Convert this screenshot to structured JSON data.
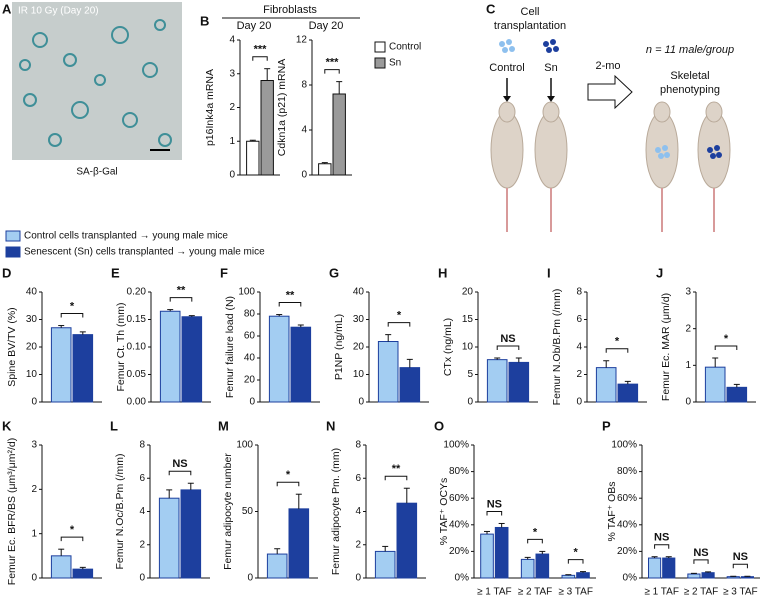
{
  "panel_a": {
    "panel": "A",
    "title": "IR 10 Gy (Day 20)",
    "caption": "SA-β-Gal"
  },
  "panel_c": {
    "panel": "C",
    "title_lines": [
      "Cell",
      "transplantation"
    ],
    "groups": [
      "Control",
      "Sn"
    ],
    "interval": "2-mo",
    "n_note": "n = 11 male/group",
    "outcome_lines": [
      "Skeletal",
      "phenotyping"
    ]
  },
  "legend": {
    "series": [
      {
        "name": "Control cells transplanted → young male mice",
        "color": "#a3cdf2"
      },
      {
        "name": "Senescent (Sn) cells transplanted → young male mice",
        "color": "#1d3f9e"
      }
    ]
  },
  "b_title": "Fibroblasts",
  "b_legend": {
    "series": [
      {
        "name": "Control",
        "color": "#ffffff"
      },
      {
        "name": "Sn",
        "color": "#9a9a9a"
      }
    ]
  },
  "chart_data": [
    {
      "type": "bar",
      "panel": "B",
      "subtitle": "Day 20",
      "ylabel": "p16Ink4a mRNA",
      "ylim": [
        0,
        4
      ],
      "yticks": [
        0,
        1,
        2,
        3,
        4
      ],
      "series": [
        {
          "values": [
            1
          ],
          "errors": [
            0.03
          ],
          "color": "#ffffff"
        },
        {
          "values": [
            2.8
          ],
          "errors": [
            0.35
          ],
          "color": "#9a9a9a"
        }
      ],
      "significance": [
        "***"
      ]
    },
    {
      "type": "bar",
      "subtitle": "Day 20",
      "ylabel": "Cdkn1a (p21) mRNA",
      "ylim": [
        0,
        12
      ],
      "yticks": [
        0,
        4,
        8,
        12
      ],
      "series": [
        {
          "values": [
            1
          ],
          "errors": [
            0.1
          ],
          "color": "#ffffff"
        },
        {
          "values": [
            7.2
          ],
          "errors": [
            1.1
          ],
          "color": "#9a9a9a"
        }
      ],
      "significance": [
        "***"
      ]
    },
    {
      "type": "bar",
      "panel": "D",
      "ylabel": "Spine BV/TV (%)",
      "ylim": [
        0,
        40
      ],
      "yticks": [
        0,
        10,
        20,
        30,
        40
      ],
      "series": [
        {
          "values": [
            27
          ],
          "errors": [
            0.8
          ]
        },
        {
          "values": [
            24.5
          ],
          "errors": [
            1
          ]
        }
      ],
      "significance": [
        "*"
      ]
    },
    {
      "type": "bar",
      "panel": "E",
      "ylabel": "Femur Ct. Th (mm)",
      "ylim": [
        0,
        0.2
      ],
      "yticks": [
        {
          "value": 0,
          "label": "0.00"
        },
        {
          "value": 0.05,
          "label": "0.05"
        },
        {
          "value": 0.1,
          "label": "0.10"
        },
        {
          "value": 0.15,
          "label": "0.15"
        },
        {
          "value": 0.2,
          "label": "0.20"
        }
      ],
      "series": [
        {
          "values": [
            0.165
          ],
          "errors": [
            0.003
          ]
        },
        {
          "values": [
            0.155
          ],
          "errors": [
            0.002
          ]
        }
      ],
      "significance": [
        "**"
      ]
    },
    {
      "type": "bar",
      "panel": "F",
      "ylabel": "Femur failure load (N)",
      "ylim": [
        0,
        100
      ],
      "yticks": [
        0,
        20,
        40,
        60,
        80,
        100
      ],
      "series": [
        {
          "values": [
            78
          ],
          "errors": [
            1.5
          ]
        },
        {
          "values": [
            68
          ],
          "errors": [
            2
          ]
        }
      ],
      "significance": [
        "**"
      ]
    },
    {
      "type": "bar",
      "panel": "G",
      "ylabel": "P1NP (ng/mL)",
      "ylim": [
        0,
        40
      ],
      "yticks": [
        0,
        10,
        20,
        30,
        40
      ],
      "series": [
        {
          "values": [
            22
          ],
          "errors": [
            2.5
          ]
        },
        {
          "values": [
            12.5
          ],
          "errors": [
            3
          ]
        }
      ],
      "significance": [
        "*"
      ]
    },
    {
      "type": "bar",
      "panel": "H",
      "ylabel": "CTx (ng/mL)",
      "ylim": [
        0,
        20
      ],
      "yticks": [
        0,
        5,
        10,
        15,
        20
      ],
      "series": [
        {
          "values": [
            7.7
          ],
          "errors": [
            0.3
          ]
        },
        {
          "values": [
            7.2
          ],
          "errors": [
            0.8
          ]
        }
      ],
      "significance": [
        "NS"
      ]
    },
    {
      "type": "bar",
      "panel": "I",
      "ylabel": "Femur N.Ob/B.Pm (/mm)",
      "ylim": [
        0,
        8
      ],
      "yticks": [
        0,
        2,
        4,
        6,
        8
      ],
      "series": [
        {
          "values": [
            2.5
          ],
          "errors": [
            0.5
          ]
        },
        {
          "values": [
            1.3
          ],
          "errors": [
            0.2
          ]
        }
      ],
      "significance": [
        "*"
      ]
    },
    {
      "type": "bar",
      "panel": "J",
      "ylabel": "Femur Ec. MAR (μm/d)",
      "ylim": [
        0,
        3
      ],
      "yticks": [
        0,
        1,
        2,
        3
      ],
      "series": [
        {
          "values": [
            0.95
          ],
          "errors": [
            0.25
          ]
        },
        {
          "values": [
            0.4
          ],
          "errors": [
            0.08
          ]
        }
      ],
      "significance": [
        "*"
      ]
    },
    {
      "type": "bar",
      "panel": "K",
      "ylabel": "Femur Ec. BFR/BS (μm³/μm²/d)",
      "ylim": [
        0,
        3
      ],
      "yticks": [
        0,
        1,
        2,
        3
      ],
      "series": [
        {
          "values": [
            0.5
          ],
          "errors": [
            0.15
          ]
        },
        {
          "values": [
            0.2
          ],
          "errors": [
            0.04
          ]
        }
      ],
      "significance": [
        "*"
      ]
    },
    {
      "type": "bar",
      "panel": "L",
      "ylabel": "Femur N.Oc/B.Pm (/mm)",
      "ylim": [
        0,
        8
      ],
      "yticks": [
        0,
        2,
        4,
        6,
        8
      ],
      "series": [
        {
          "values": [
            4.8
          ],
          "errors": [
            0.5
          ]
        },
        {
          "values": [
            5.3
          ],
          "errors": [
            0.4
          ]
        }
      ],
      "significance": [
        "NS"
      ]
    },
    {
      "type": "bar",
      "panel": "M",
      "ylabel": "Femur adipocyte number",
      "ylim": [
        0,
        100
      ],
      "yticks": [
        0,
        50,
        100
      ],
      "series": [
        {
          "values": [
            18
          ],
          "errors": [
            4
          ]
        },
        {
          "values": [
            52
          ],
          "errors": [
            11
          ]
        }
      ],
      "significance": [
        "*"
      ]
    },
    {
      "type": "bar",
      "panel": "N",
      "ylabel": "Femur adipocyte Pm. (mm)",
      "ylim": [
        0,
        8
      ],
      "yticks": [
        0,
        2,
        4,
        6,
        8
      ],
      "series": [
        {
          "values": [
            1.6
          ],
          "errors": [
            0.3
          ]
        },
        {
          "values": [
            4.5
          ],
          "errors": [
            0.9
          ]
        }
      ],
      "significance": [
        "**"
      ]
    },
    {
      "type": "bar",
      "panel": "O",
      "ylabel": "% TAF⁺ OCYs",
      "ylim": [
        0,
        100
      ],
      "yticks": [
        {
          "value": 0,
          "label": "0%"
        },
        {
          "value": 20,
          "label": "20%"
        },
        {
          "value": 40,
          "label": "40%"
        },
        {
          "value": 60,
          "label": "60%"
        },
        {
          "value": 80,
          "label": "80%"
        },
        {
          "value": 100,
          "label": "100%"
        }
      ],
      "categories": [
        "≥ 1 TAF",
        "≥ 2 TAF",
        "≥ 3 TAF"
      ],
      "series": [
        {
          "values": [
            33,
            14,
            2
          ],
          "errors": [
            2,
            1.5,
            0.5
          ]
        },
        {
          "values": [
            38,
            18,
            4
          ],
          "errors": [
            3,
            2,
            0.8
          ]
        }
      ],
      "significance": [
        "NS",
        "*",
        "*"
      ]
    },
    {
      "type": "bar",
      "panel": "P",
      "ylabel": "% TAF⁺ OBs",
      "ylim": [
        0,
        100
      ],
      "yticks": [
        {
          "value": 0,
          "label": "0%"
        },
        {
          "value": 20,
          "label": "20%"
        },
        {
          "value": 40,
          "label": "40%"
        },
        {
          "value": 60,
          "label": "60%"
        },
        {
          "value": 80,
          "label": "80%"
        },
        {
          "value": 100,
          "label": "100%"
        }
      ],
      "categories": [
        "≥ 1 TAF",
        "≥ 2 TAF",
        "≥ 3 TAF"
      ],
      "series": [
        {
          "values": [
            15,
            3,
            1
          ],
          "errors": [
            1,
            0.5,
            0.3
          ]
        },
        {
          "values": [
            15,
            4,
            1
          ],
          "errors": [
            1,
            0.6,
            0.3
          ]
        }
      ],
      "significance": [
        "NS",
        "NS",
        "NS"
      ]
    }
  ]
}
